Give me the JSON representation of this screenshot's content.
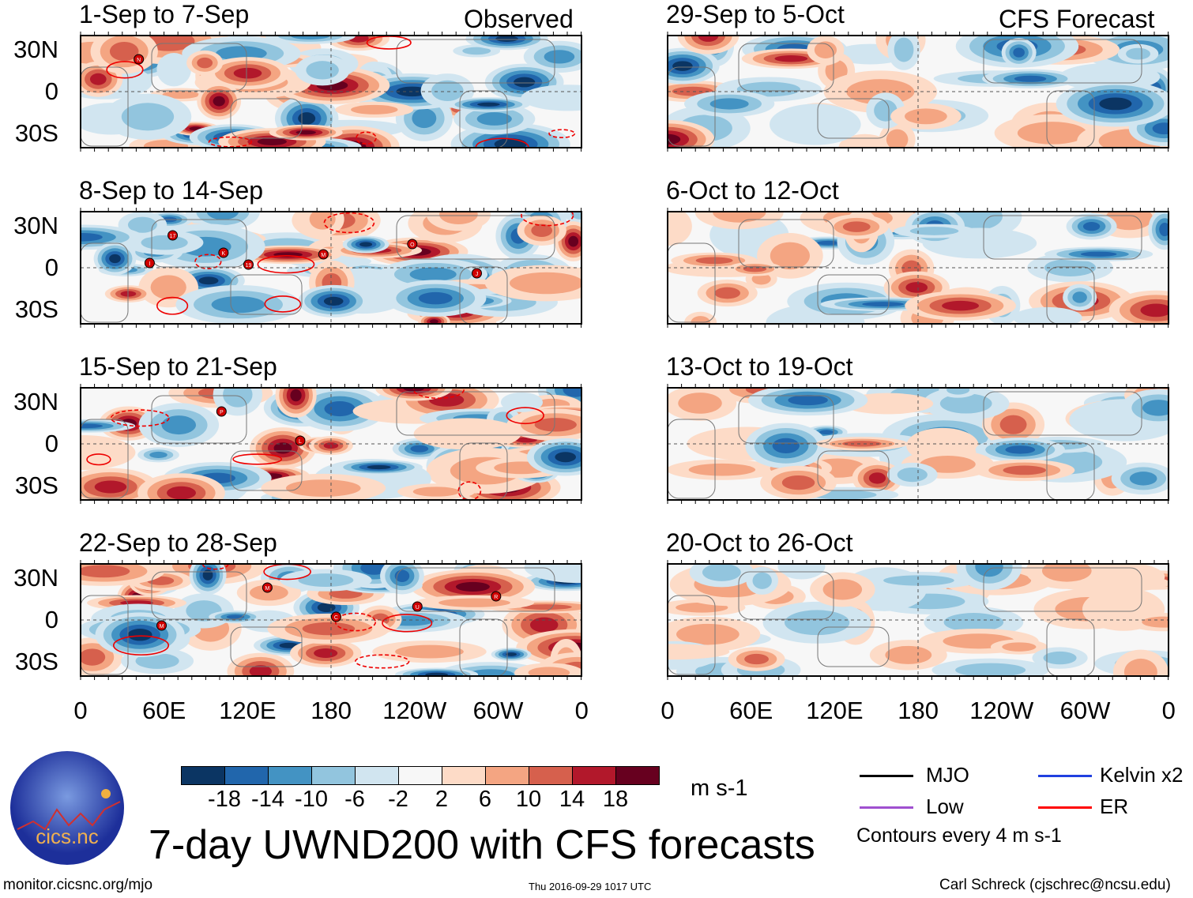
{
  "headers": {
    "left": "Observed",
    "right": "CFS Forecast"
  },
  "panels": [
    {
      "title": "1-Sep to 7-Sep",
      "side": "observed",
      "storms": [
        "N"
      ]
    },
    {
      "title": "8-Sep to 14-Sep",
      "side": "observed",
      "storms": [
        "17",
        "19",
        "M",
        "O",
        "J",
        "I",
        "K"
      ]
    },
    {
      "title": "15-Sep to 21-Sep",
      "side": "observed",
      "storms": [
        "P",
        "L"
      ]
    },
    {
      "title": "22-Sep to 28-Sep",
      "side": "observed",
      "storms": [
        "M",
        "C",
        "U",
        "R",
        "M"
      ]
    },
    {
      "title": "29-Sep to 5-Oct",
      "side": "forecast",
      "storms": []
    },
    {
      "title": "6-Oct to 12-Oct",
      "side": "forecast",
      "storms": []
    },
    {
      "title": "13-Oct to 19-Oct",
      "side": "forecast",
      "storms": []
    },
    {
      "title": "20-Oct to 26-Oct",
      "side": "forecast",
      "storms": []
    }
  ],
  "lat_labels": [
    "30N",
    "0",
    "30S"
  ],
  "lon_labels": [
    "0",
    "60E",
    "120E",
    "180",
    "120W",
    "60W",
    "0"
  ],
  "colorbar": {
    "colors": [
      "#0b3563",
      "#2166ac",
      "#4393c3",
      "#92c5de",
      "#d1e5f0",
      "#f7f7f7",
      "#fddbc7",
      "#f4a582",
      "#d6604d",
      "#b2182b",
      "#67001f"
    ],
    "labels": [
      "-18",
      "-14",
      "-10",
      "-6",
      "-2",
      "2",
      "6",
      "10",
      "14",
      "18"
    ],
    "units": "m s-1"
  },
  "title": "7-day UWND200 with CFS forecasts",
  "legend": {
    "items": [
      {
        "label": "MJO",
        "color": "#000000"
      },
      {
        "label": "Kelvin x2",
        "color": "#2040e0"
      },
      {
        "label": "Low",
        "color": "#a050d0"
      },
      {
        "label": "ER",
        "color": "#ff0000"
      }
    ],
    "contours": "Contours every 4 m s-1"
  },
  "logo": {
    "text": "cics.nc",
    "ring": "Cooperative Institute for Climate and Satellites"
  },
  "footer": {
    "url": "monitor.cicsnc.org/mjo",
    "timestamp": "Thu 2016-09-29 1017 UTC",
    "author": "Carl Schreck (cjschrec@ncsu.edu)"
  }
}
